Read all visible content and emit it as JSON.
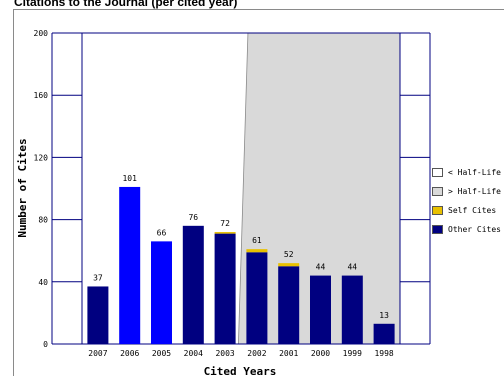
{
  "page": {
    "title": "Citations to the Journal (per cited year)"
  },
  "colors": {
    "other_cites": "#000080",
    "other_cites_halflife": "#0000ff",
    "self_cites": "#e8c000",
    "after_halflife_region": "#d9d9d9",
    "before_halflife_region": "#ffffff",
    "axis": "#000080"
  },
  "legend": {
    "items": [
      {
        "label": "< Half-Life",
        "color": "#ffffff"
      },
      {
        "label": "> Half-Life",
        "color": "#d9d9d9"
      },
      {
        "label": "Self Cites",
        "color": "#e8c000"
      },
      {
        "label": "Other Cites",
        "color": "#000080"
      }
    ]
  },
  "chart_data": {
    "type": "bar",
    "xlabel": "Cited Years",
    "ylabel": "Number of Cites",
    "ylim": [
      0,
      200
    ],
    "yticks": [
      "0",
      "40",
      "80",
      "120",
      "160",
      "200"
    ],
    "grid": false,
    "legend_position": "right",
    "categories": [
      "2007",
      "2006",
      "2005",
      "2004",
      "2003",
      "2002",
      "2001",
      "2000",
      "1999",
      "1998"
    ],
    "value_labels": [
      "37",
      "101",
      "66",
      "76",
      "72",
      "61",
      "52",
      "44",
      "44",
      "13"
    ],
    "series": [
      {
        "name": "Other Cites",
        "values": [
          37,
          101,
          66,
          76,
          71,
          59,
          50,
          44,
          44,
          13
        ]
      },
      {
        "name": "Self Cites",
        "values": [
          0,
          0,
          0,
          0,
          1,
          2,
          2,
          0,
          0,
          0
        ]
      }
    ],
    "bar_colors": [
      "#000080",
      "#0000ff",
      "#0000ff",
      "#000080",
      "#000080",
      "#000080",
      "#000080",
      "#000080",
      "#000080",
      "#000080"
    ],
    "half_life_region": {
      "from_category": "2002",
      "to_category": "1998",
      "shading": "after half-life"
    }
  }
}
